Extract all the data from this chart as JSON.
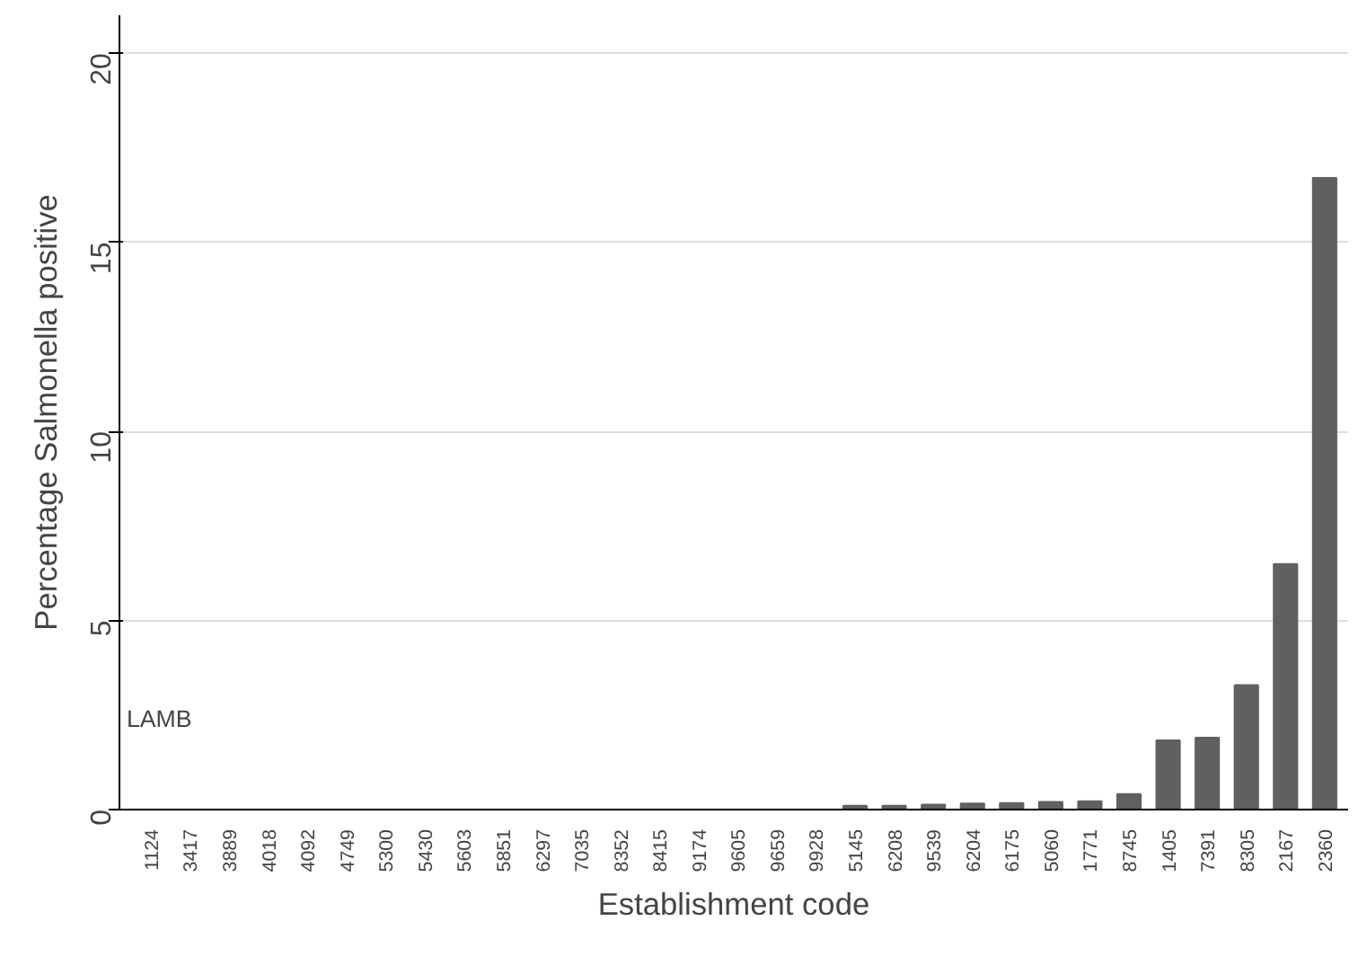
{
  "chart_data": {
    "type": "bar",
    "xlabel": "Establishment code",
    "ylabel": "Percentage Salmonella positive",
    "categories": [
      "1124",
      "3417",
      "3889",
      "4018",
      "4092",
      "4749",
      "5300",
      "5430",
      "5603",
      "5851",
      "6297",
      "7035",
      "8352",
      "8415",
      "9174",
      "9605",
      "9659",
      "9928",
      "5145",
      "6208",
      "9539",
      "6204",
      "6175",
      "5060",
      "1771",
      "8745",
      "1405",
      "7391",
      "8305",
      "2167",
      "2360"
    ],
    "values": [
      0,
      0,
      0,
      0,
      0,
      0,
      0,
      0,
      0,
      0,
      0,
      0,
      0,
      0,
      0,
      0,
      0,
      0,
      0.1,
      0.1,
      0.13,
      0.16,
      0.17,
      0.2,
      0.22,
      0.41,
      1.83,
      1.9,
      3.29,
      6.49,
      16.7
    ],
    "color": "#606060",
    "ylim": [
      0,
      21
    ],
    "yticks": [
      0,
      5,
      10,
      15,
      20
    ],
    "grid": "y",
    "annotations": [
      "LAMB"
    ]
  }
}
